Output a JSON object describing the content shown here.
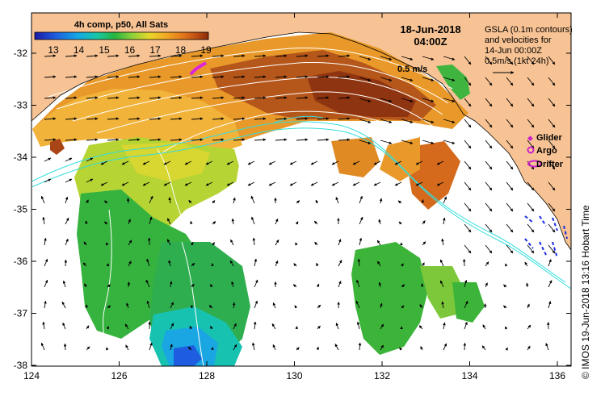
{
  "colorbar": {
    "title": "4h comp, p50, All Sats",
    "ticks": [
      "13",
      "14",
      "15",
      "16",
      "17",
      "18",
      "19"
    ],
    "colors": [
      "#1a1aa8",
      "#1f5de0",
      "#12a9e6",
      "#18c7a4",
      "#27b540",
      "#8cd03a",
      "#e8d62a",
      "#f2a724",
      "#e0731b",
      "#b84a12",
      "#8a2a08"
    ]
  },
  "timestamp": {
    "date": "18-Jun-2018",
    "time": "04:00Z"
  },
  "velocity_label": "0.5 m/s",
  "info": {
    "lines": [
      "GSLA (0.1m contours)",
      "and velocities for",
      "14-Jun 00:00Z",
      "0.5m/s (1kt 24h)"
    ]
  },
  "legend": [
    {
      "label": "Glider",
      "symbol": "diamond",
      "color": "#cc22cc"
    },
    {
      "label": "Argo",
      "symbol": "circle",
      "color": "#cc22cc"
    },
    {
      "label": "Drifter",
      "symbol": "loop",
      "color": "#cc22cc"
    }
  ],
  "axes": {
    "x_ticks": [
      "124",
      "126",
      "128",
      "130",
      "132",
      "134",
      "136"
    ],
    "y_ticks": [
      "-32",
      "-33",
      "-34",
      "-35",
      "-36",
      "-37",
      "-38"
    ]
  },
  "credit": "© IMOS 19-Jun-2018 13:16 Hobart Time",
  "colors": {
    "land": "#f8c394",
    "sea": "#ffffff",
    "shelf_contour": "#33dddd",
    "gsla_contour": "#ffffff"
  }
}
